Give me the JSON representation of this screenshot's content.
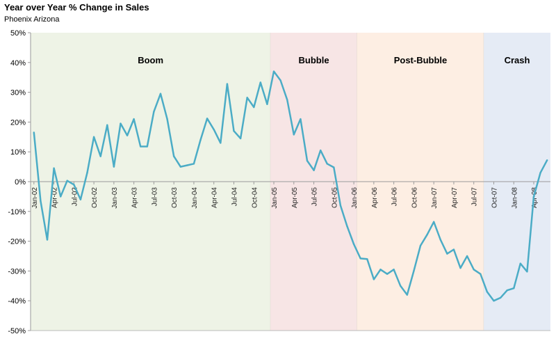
{
  "chart_data": {
    "type": "line",
    "title": "Year over Year % Change in Sales",
    "subtitle": "Phoenix Arizona",
    "xlabel": "",
    "ylabel": "",
    "ylim": [
      -50,
      50
    ],
    "yticks": [
      50,
      40,
      30,
      20,
      10,
      0,
      -10,
      -20,
      -30,
      -40,
      -50
    ],
    "ytick_labels": [
      "50%",
      "40%",
      "30%",
      "20%",
      "10%",
      "0%",
      "-10%",
      "-20%",
      "-30%",
      "-40%",
      "-50%"
    ],
    "grid": false,
    "line_color": "#4bacc6",
    "x": [
      "Jan-02",
      "Feb-02",
      "Mar-02",
      "Apr-02",
      "May-02",
      "Jun-02",
      "Jul-02",
      "Aug-02",
      "Sep-02",
      "Oct-02",
      "Nov-02",
      "Dec-02",
      "Jan-03",
      "Feb-03",
      "Mar-03",
      "Apr-03",
      "May-03",
      "Jun-03",
      "Jul-03",
      "Aug-03",
      "Sep-03",
      "Oct-03",
      "Nov-03",
      "Dec-03",
      "Jan-04",
      "Feb-04",
      "Mar-04",
      "Apr-04",
      "May-04",
      "Jun-04",
      "Jul-04",
      "Aug-04",
      "Sep-04",
      "Oct-04",
      "Nov-04",
      "Dec-04",
      "Jan-05",
      "Feb-05",
      "Mar-05",
      "Apr-05",
      "May-05",
      "Jun-05",
      "Jul-05",
      "Aug-05",
      "Sep-05",
      "Oct-05",
      "Nov-05",
      "Dec-05",
      "Jan-06",
      "Feb-06",
      "Mar-06",
      "Apr-06",
      "May-06",
      "Jun-06",
      "Jul-06",
      "Aug-06",
      "Sep-06",
      "Oct-06",
      "Nov-06",
      "Dec-06",
      "Jan-07",
      "Feb-07",
      "Mar-07",
      "Apr-07",
      "May-07",
      "Jun-07",
      "Jul-07",
      "Aug-07",
      "Sep-07",
      "Oct-07",
      "Nov-07",
      "Dec-07",
      "Jan-08",
      "Feb-08",
      "Mar-08",
      "Apr-08",
      "May-08",
      "Jun-08"
    ],
    "x_tick_labels": [
      "Jan-02",
      "Apr-02",
      "Jul-02",
      "Oct-02",
      "Jan-03",
      "Apr-03",
      "Jul-03",
      "Oct-03",
      "Jan-04",
      "Apr-04",
      "Jul-04",
      "Oct-04",
      "Jan-05",
      "Apr-05",
      "Jul-05",
      "Oct-05",
      "Jan-06",
      "Apr-06",
      "Jul-06",
      "Oct-06",
      "Jan-07",
      "Apr-07",
      "Jul-07",
      "Oct-07",
      "Jan-08",
      "Apr-08"
    ],
    "series": [
      {
        "name": "YoY % Change in Sales",
        "values": [
          16.5,
          -6.5,
          -19.5,
          4.5,
          -5,
          0.3,
          -1,
          -6,
          3,
          15,
          8.5,
          19,
          5,
          19.5,
          15.5,
          21,
          11.8,
          11.8,
          23.5,
          29.5,
          21,
          8.5,
          5,
          5.5,
          6,
          14,
          21.2,
          17.5,
          13,
          32.8,
          17,
          14.5,
          28.2,
          25,
          33.3,
          26,
          37,
          34,
          27.5,
          15.8,
          21,
          7,
          3.8,
          10.5,
          6,
          4.8,
          -8,
          -15,
          -21,
          -25.8,
          -26,
          -32.8,
          -29.5,
          -31,
          -29.5,
          -35,
          -38,
          -30,
          -21.5,
          -17.8,
          -13.5,
          -19.5,
          -24.2,
          -22.8,
          -29,
          -25,
          -29.5,
          -31,
          -37,
          -40,
          -39,
          -36.5,
          -35.8,
          -27.5,
          -30.2,
          -5,
          3,
          7.2
        ]
      }
    ],
    "phases": [
      {
        "label": "Boom",
        "start": "Jan-02",
        "end": "Dec-04",
        "color": "#eef3e6"
      },
      {
        "label": "Bubble",
        "start": "Jan-05",
        "end": "Jan-06",
        "color": "#f7e5e5"
      },
      {
        "label": "Post-Bubble",
        "start": "Feb-06",
        "end": "Aug-07",
        "color": "#fdeee3"
      },
      {
        "label": "Crash",
        "start": "Sep-07",
        "end": "Jun-08",
        "color": "#e5ebf5"
      }
    ]
  }
}
